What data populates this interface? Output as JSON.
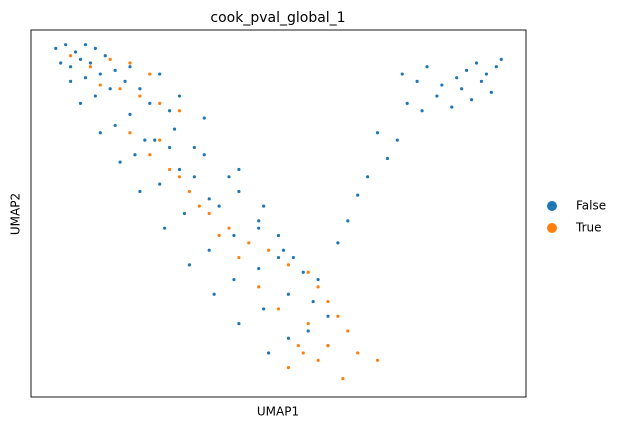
{
  "chart_data": {
    "type": "scatter",
    "title": "cook_pval_global_1",
    "x_label": "UMAP1",
    "y_label": "UMAP2",
    "xlim": [
      0,
      100
    ],
    "ylim": [
      0,
      100
    ],
    "legend": "right",
    "series": [
      {
        "name": "False",
        "color": "#1f77b4",
        "x": [
          5,
          7,
          9,
          11,
          13,
          6,
          8,
          10,
          12,
          15,
          8,
          11,
          14,
          17,
          20,
          10,
          13,
          16,
          19,
          22,
          14,
          17,
          20,
          24,
          28,
          18,
          21,
          25,
          29,
          33,
          22,
          26,
          30,
          35,
          40,
          27,
          31,
          36,
          42,
          47,
          32,
          36,
          41,
          46,
          51,
          37,
          41,
          46,
          50,
          55,
          42,
          47,
          52,
          57,
          60,
          48,
          52,
          56,
          60,
          23,
          28,
          33,
          38,
          46,
          50,
          53,
          35,
          42,
          30,
          26,
          75,
          78,
          80,
          83,
          86,
          88,
          90,
          92,
          94,
          95,
          76,
          79,
          82,
          85,
          87,
          89,
          91,
          93,
          70,
          72,
          74,
          68,
          66,
          64,
          62,
          58
        ],
        "values": [
          95,
          96,
          94,
          96,
          95,
          91,
          90,
          92,
          91,
          93,
          86,
          87,
          88,
          89,
          90,
          80,
          82,
          84,
          86,
          84,
          72,
          74,
          77,
          80,
          78,
          64,
          66,
          70,
          73,
          68,
          56,
          58,
          62,
          66,
          60,
          46,
          50,
          54,
          56,
          52,
          36,
          40,
          44,
          46,
          40,
          28,
          32,
          35,
          38,
          34,
          20,
          24,
          28,
          26,
          22,
          12,
          16,
          18,
          14,
          70,
          68,
          60,
          52,
          48,
          44,
          38,
          76,
          62,
          82,
          88,
          88,
          86,
          90,
          85,
          87,
          89,
          91,
          88,
          90,
          92,
          80,
          78,
          82,
          79,
          84,
          81,
          86,
          83,
          72,
          65,
          70,
          60,
          55,
          48,
          42,
          32
        ]
      },
      {
        "name": "True",
        "color": "#ff7f0e",
        "x": [
          8,
          12,
          16,
          20,
          24,
          18,
          22,
          26,
          30,
          14,
          20,
          24,
          28,
          32,
          36,
          40,
          44,
          48,
          52,
          56,
          58,
          60,
          62,
          64,
          54,
          50,
          46,
          42,
          38,
          34,
          30,
          26,
          55,
          58,
          52,
          56,
          60,
          66,
          70,
          63
        ],
        "values": [
          93,
          90,
          92,
          91,
          88,
          84,
          82,
          80,
          78,
          85,
          72,
          66,
          62,
          56,
          50,
          46,
          42,
          40,
          36,
          34,
          30,
          26,
          22,
          18,
          14,
          24,
          30,
          38,
          44,
          52,
          60,
          70,
          12,
          10,
          8,
          20,
          14,
          12,
          10,
          5
        ]
      }
    ]
  }
}
